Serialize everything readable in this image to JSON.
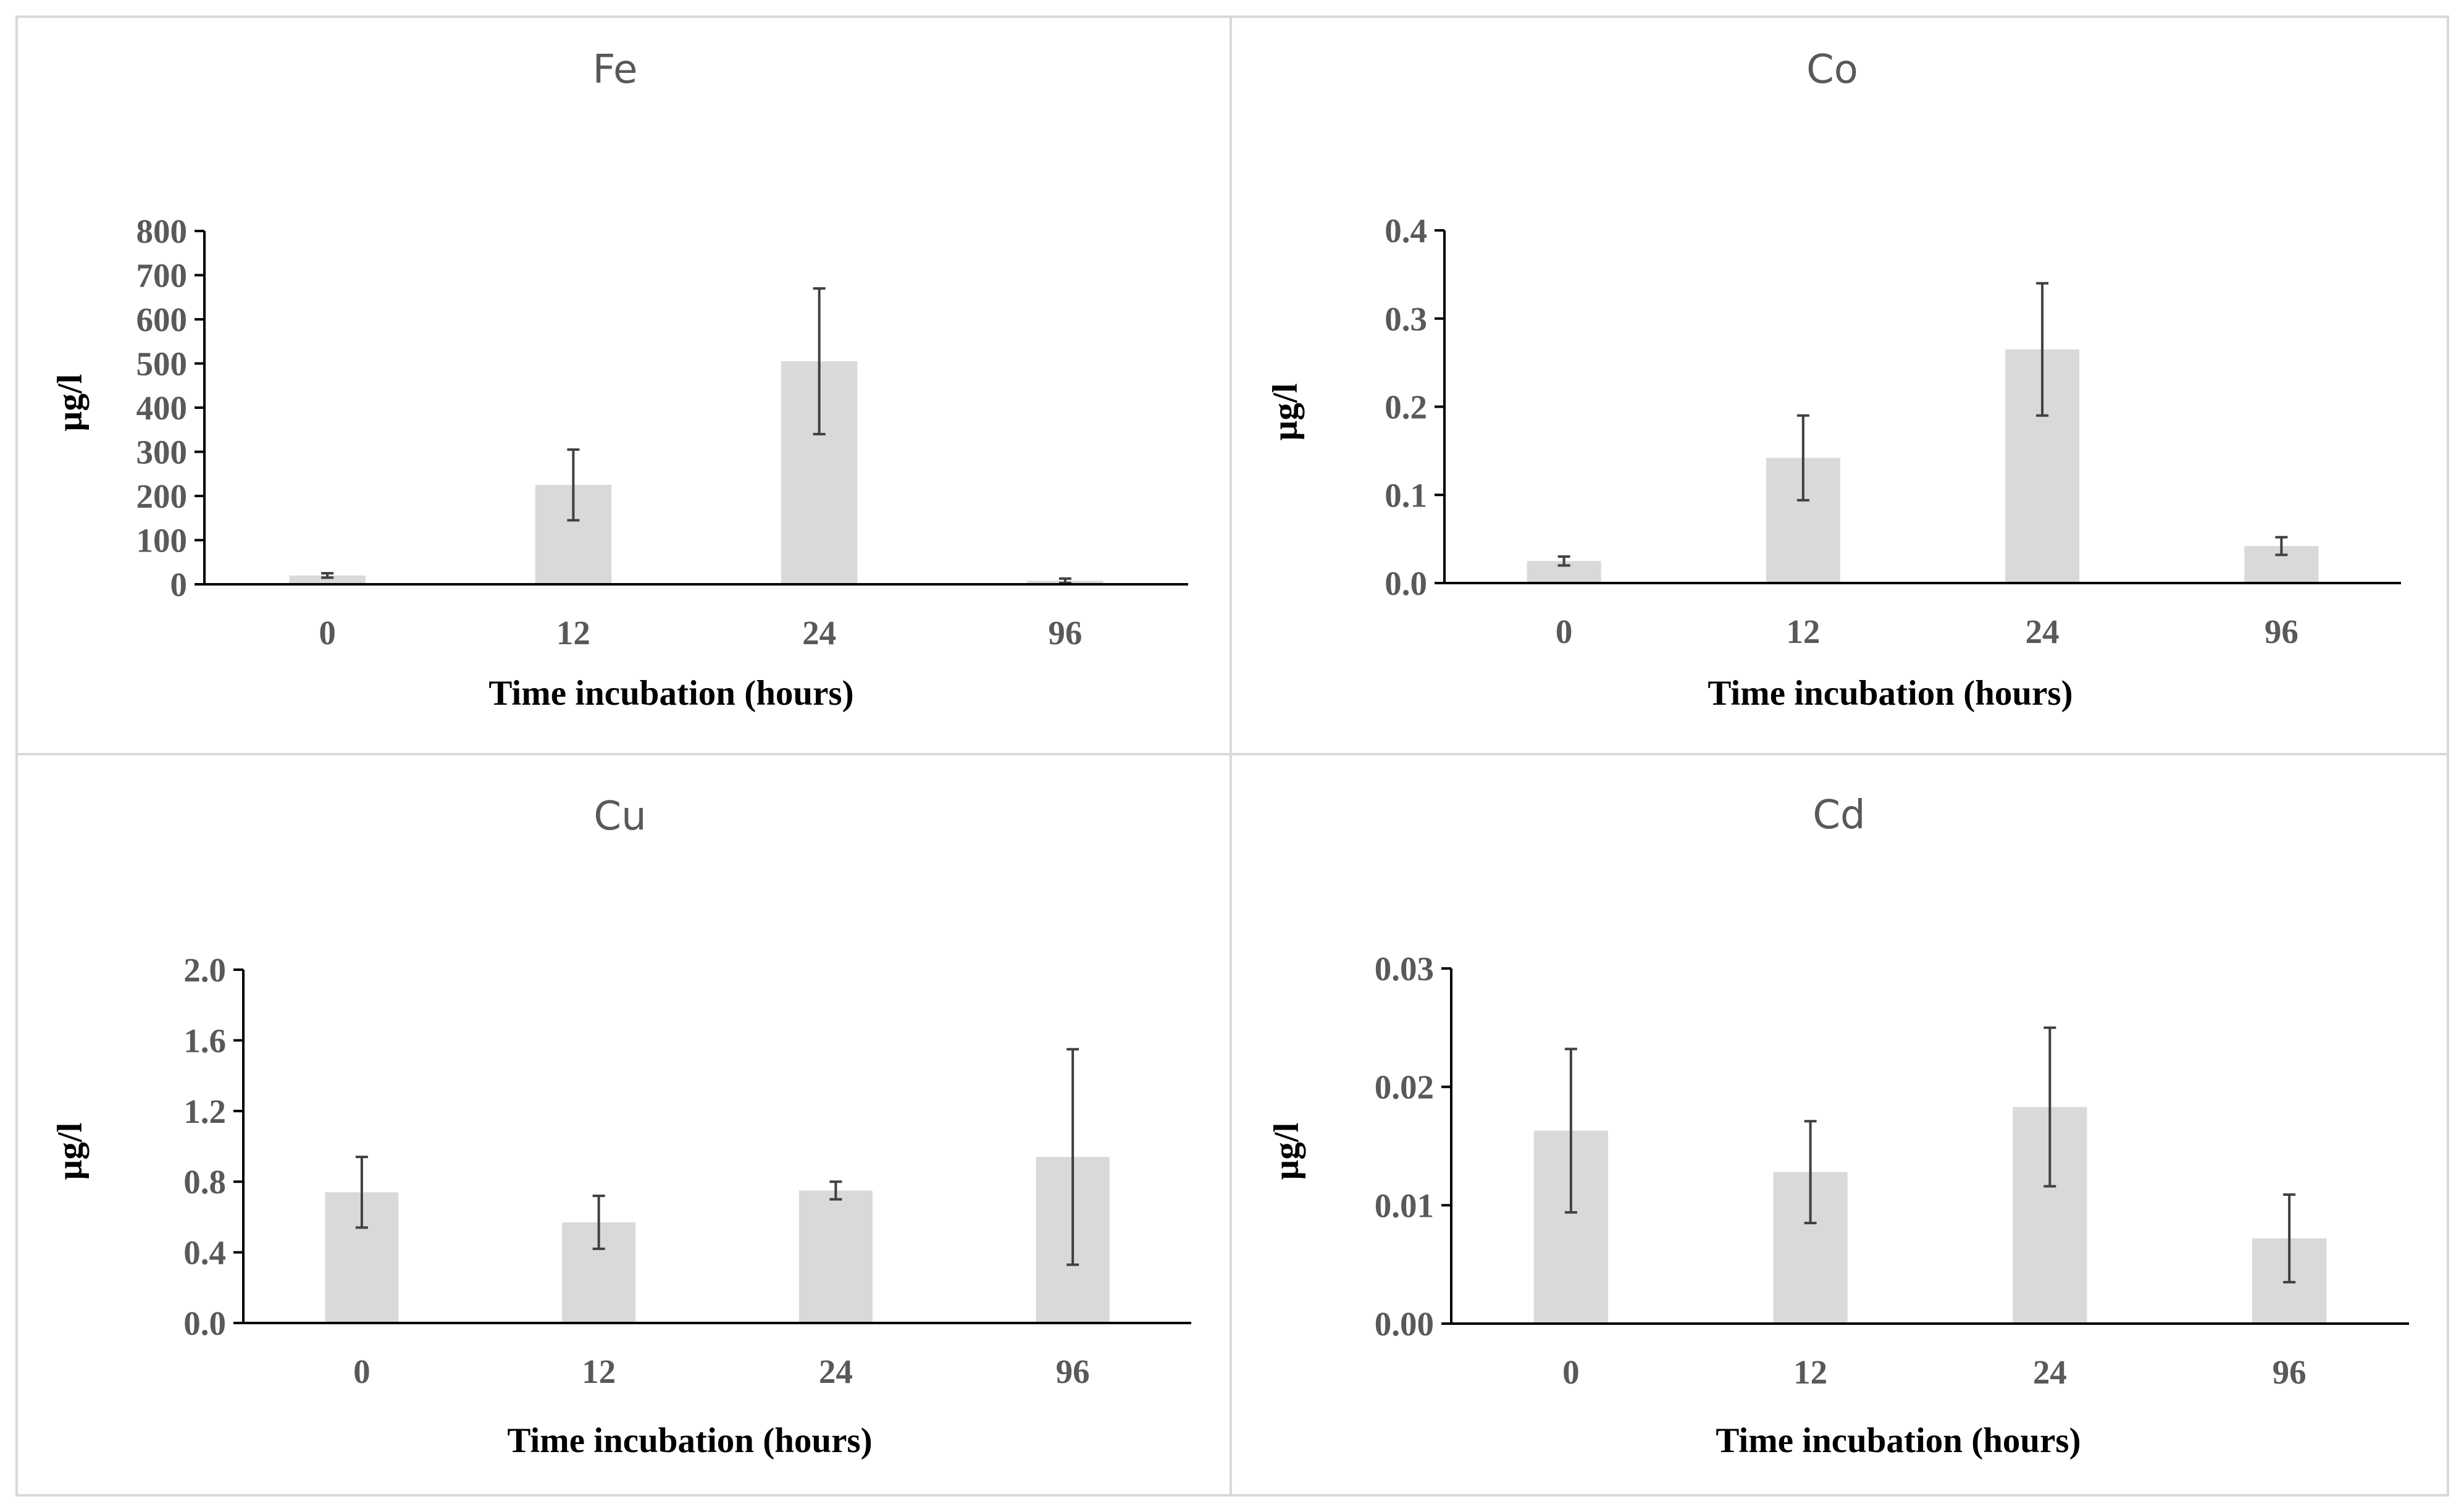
{
  "chart_data": [
    {
      "type": "bar",
      "title": "Fe",
      "xlabel": "Time incubation  (hours)",
      "ylabel": "µg/l",
      "categories": [
        "0",
        "12",
        "24",
        "96"
      ],
      "values": [
        20,
        225,
        505,
        8
      ],
      "error": [
        5,
        80,
        165,
        5
      ],
      "ylim": [
        0,
        800
      ],
      "yticks": [
        0,
        100,
        200,
        300,
        400,
        500,
        600,
        700,
        800
      ],
      "ytick_labels": [
        "0",
        "100",
        "200",
        "300",
        "400",
        "500",
        "600",
        "700",
        "800"
      ],
      "colors": {
        "bar": "#d9d9d9",
        "error": "#404040"
      }
    },
    {
      "type": "bar",
      "title": "Co",
      "xlabel": "Time incubation  (hours)",
      "ylabel": "µg/l",
      "categories": [
        "0",
        "12",
        "24",
        "96"
      ],
      "values": [
        0.025,
        0.142,
        0.265,
        0.042
      ],
      "error": [
        0.005,
        0.048,
        0.075,
        0.01
      ],
      "ylim": [
        0,
        0.4
      ],
      "yticks": [
        0,
        0.1,
        0.2,
        0.3,
        0.4
      ],
      "ytick_labels": [
        "0.0",
        "0.1",
        "0.2",
        "0.3",
        "0.4"
      ],
      "colors": {
        "bar": "#d9d9d9",
        "error": "#404040"
      }
    },
    {
      "type": "bar",
      "title": "Cu",
      "xlabel": "Time incubation  (hours)",
      "ylabel": "µg/l",
      "categories": [
        "0",
        "12",
        "24",
        "96"
      ],
      "values": [
        0.74,
        0.57,
        0.75,
        0.94
      ],
      "error": [
        0.2,
        0.15,
        0.05,
        0.61
      ],
      "ylim": [
        0,
        2.0
      ],
      "yticks": [
        0,
        0.4,
        0.8,
        1.2,
        1.6,
        2.0
      ],
      "ytick_labels": [
        "0.0",
        "0.4",
        "0.8",
        "1.2",
        "1.6",
        "2.0"
      ],
      "colors": {
        "bar": "#d9d9d9",
        "error": "#404040"
      }
    },
    {
      "type": "bar",
      "title": "Cd",
      "xlabel": "Time incubation  (hours)",
      "ylabel": "µg/l",
      "categories": [
        "0",
        "12",
        "24",
        "96"
      ],
      "values": [
        0.0163,
        0.0128,
        0.0183,
        0.0072
      ],
      "error": [
        0.0069,
        0.0043,
        0.0067,
        0.0037
      ],
      "ylim": [
        0,
        0.03
      ],
      "yticks": [
        0,
        0.01,
        0.02,
        0.03
      ],
      "ytick_labels": [
        "0.00",
        "0.01",
        "0.02",
        "0.03"
      ],
      "colors": {
        "bar": "#d9d9d9",
        "error": "#404040"
      }
    }
  ]
}
